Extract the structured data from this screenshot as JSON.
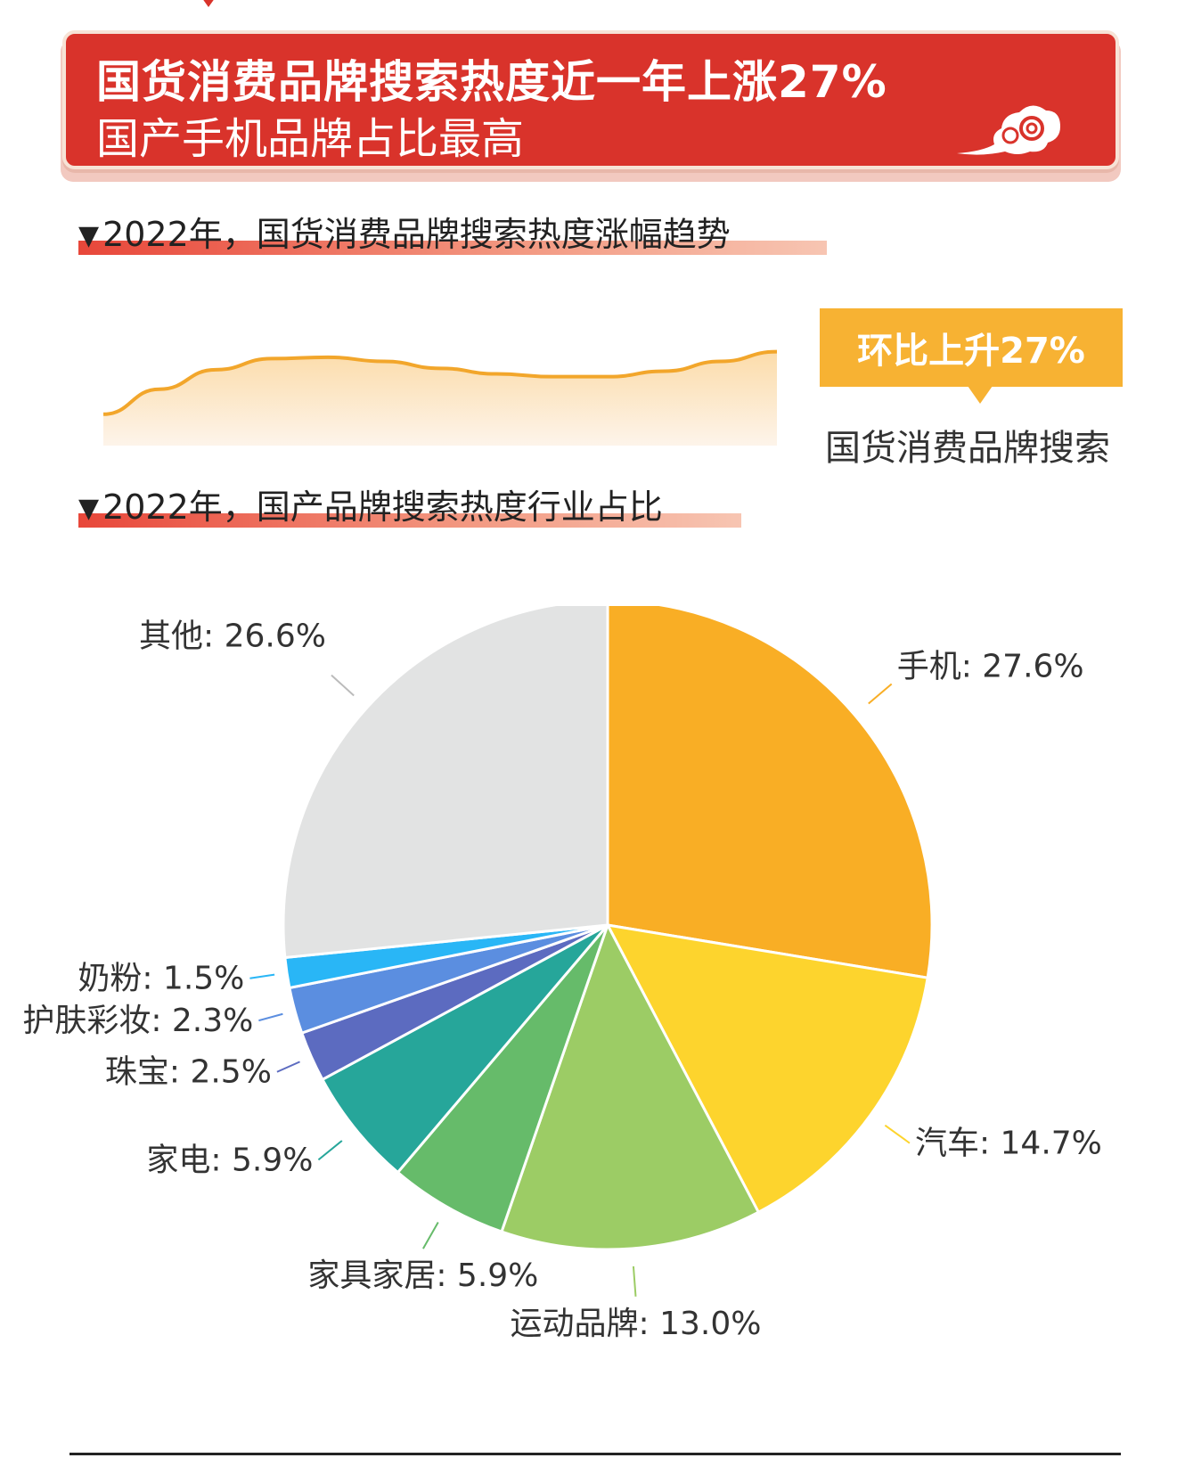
{
  "banner": {
    "title": "国货消费品牌搜索热度近一年上涨27%",
    "subtitle": "国产手机品牌占比最高",
    "decoration": "auspicious-cloud-icon"
  },
  "section1": {
    "marker": "▼",
    "heading": "2022年，国货消费品牌搜索热度涨幅趋势"
  },
  "callout": {
    "label": "环比上升27%",
    "caption": "国货消费品牌搜索"
  },
  "section2": {
    "marker": "▼",
    "heading": "2022年，国产品牌搜索热度行业占比"
  },
  "chart_data": [
    {
      "type": "area",
      "series": [
        {
          "values": [
            0.2,
            0.38,
            0.52,
            0.6,
            0.61,
            0.58,
            0.53,
            0.49,
            0.47,
            0.47,
            0.51,
            0.58,
            0.65
          ]
        }
      ],
      "ylim": [
        0,
        1
      ],
      "grid": false,
      "color": "#f2a62b",
      "fill_colors": [
        "#fcdcaa",
        "#fdf4ea"
      ]
    },
    {
      "type": "pie",
      "categories": [
        "手机",
        "汽车",
        "运动品牌",
        "家具家居",
        "家电",
        "珠宝",
        "护肤彩妆",
        "奶粉",
        "其他"
      ],
      "values": [
        27.6,
        14.7,
        13.0,
        5.9,
        5.9,
        2.5,
        2.3,
        1.5,
        26.6
      ],
      "labels": [
        "手机: 27.6%",
        "汽车: 14.7%",
        "运动品牌: 13.0%",
        "家具家居: 5.9%",
        "家电: 5.9%",
        "珠宝: 2.5%",
        "护肤彩妆: 2.3%",
        "奶粉: 1.5%",
        "其他: 26.6%"
      ],
      "colors": [
        "#f9ae25",
        "#fdd42d",
        "#9ccc65",
        "#66bb6a",
        "#26a69a",
        "#5c6bc0",
        "#5b8ee0",
        "#29b6f6",
        "#e2e3e3"
      ],
      "start": "12 o'clock",
      "direction": "clockwise"
    }
  ]
}
